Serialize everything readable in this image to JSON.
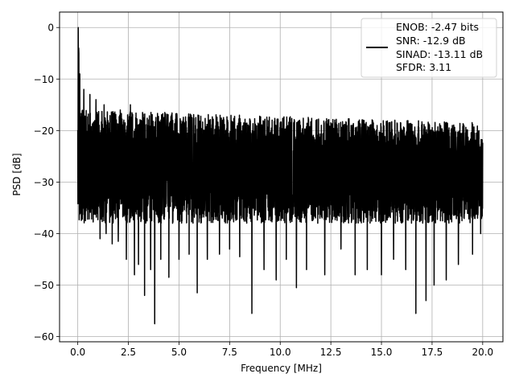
{
  "chart_data": {
    "type": "line",
    "xlabel": "Frequency [MHz]",
    "ylabel": "PSD [dB]",
    "xlim": [
      -0.9,
      21.0
    ],
    "ylim": [
      -61,
      3
    ],
    "xticks": [
      0.0,
      2.5,
      5.0,
      7.5,
      10.0,
      12.5,
      15.0,
      17.5,
      20.0
    ],
    "xtick_labels": [
      "0.0",
      "2.5",
      "5.0",
      "7.5",
      "10.0",
      "12.5",
      "15.0",
      "17.5",
      "20.0"
    ],
    "yticks": [
      0,
      -10,
      -20,
      -30,
      -40,
      -50,
      -60
    ],
    "ytick_labels": [
      "0",
      "−10",
      "−20",
      "−30",
      "−40",
      "−50",
      "−60"
    ],
    "grid": true,
    "legend_position": "top-right",
    "series": [
      {
        "color": "#000000",
        "x_range": [
          0.0,
          20.0
        ],
        "peak": [
          0.02,
          0.0
        ],
        "noise_floor_band": [
          -38,
          -18
        ],
        "deep_minima": [
          [
            1.1,
            -41
          ],
          [
            1.4,
            -40
          ],
          [
            1.7,
            -42
          ],
          [
            2.0,
            -41.5
          ],
          [
            2.4,
            -45
          ],
          [
            2.8,
            -48
          ],
          [
            3.0,
            -46
          ],
          [
            3.3,
            -52
          ],
          [
            3.6,
            -47
          ],
          [
            3.8,
            -57.5
          ],
          [
            4.1,
            -45
          ],
          [
            4.5,
            -48.5
          ],
          [
            5.0,
            -45
          ],
          [
            5.5,
            -44
          ],
          [
            5.9,
            -51.5
          ],
          [
            6.4,
            -45
          ],
          [
            7.0,
            -44
          ],
          [
            7.5,
            -43
          ],
          [
            8.0,
            -44.5
          ],
          [
            8.6,
            -55.5
          ],
          [
            9.2,
            -47
          ],
          [
            9.8,
            -49
          ],
          [
            10.3,
            -45
          ],
          [
            10.8,
            -50.5
          ],
          [
            11.3,
            -47
          ],
          [
            12.2,
            -48
          ],
          [
            13.0,
            -43
          ],
          [
            13.7,
            -48
          ],
          [
            14.3,
            -47
          ],
          [
            15.0,
            -48
          ],
          [
            15.6,
            -45
          ],
          [
            16.2,
            -47
          ],
          [
            16.7,
            -55.5
          ],
          [
            17.2,
            -53
          ],
          [
            17.6,
            -50
          ],
          [
            18.2,
            -49
          ],
          [
            18.8,
            -46
          ],
          [
            19.5,
            -44
          ],
          [
            19.9,
            -40
          ]
        ],
        "high_peaks": [
          [
            0.05,
            -5
          ],
          [
            0.1,
            -9
          ],
          [
            0.3,
            -12
          ],
          [
            0.6,
            -13
          ],
          [
            0.9,
            -14
          ],
          [
            1.3,
            -15
          ],
          [
            1.7,
            -14.5
          ],
          [
            2.1,
            -16
          ],
          [
            2.6,
            -15
          ],
          [
            3.2,
            -16.5
          ],
          [
            3.8,
            -17
          ],
          [
            4.3,
            -16.5
          ],
          [
            4.9,
            -17
          ],
          [
            5.6,
            -17
          ],
          [
            6.5,
            -18
          ],
          [
            7.4,
            -18
          ],
          [
            8.2,
            -18.5
          ],
          [
            9.0,
            -18
          ],
          [
            10.0,
            -18.5
          ],
          [
            11.0,
            -19
          ],
          [
            12.5,
            -18.5
          ],
          [
            13.5,
            -19
          ],
          [
            14.6,
            -18.5
          ],
          [
            15.6,
            -19
          ],
          [
            16.5,
            -19
          ],
          [
            17.6,
            -19.5
          ],
          [
            18.5,
            -19
          ],
          [
            19.5,
            -19.5
          ]
        ]
      }
    ],
    "legend": {
      "lines": [
        "ENOB: -2.47 bits",
        "SNR: -12.9 dB",
        "SINAD: -13.11 dB",
        "SFDR: 3.11"
      ]
    }
  }
}
